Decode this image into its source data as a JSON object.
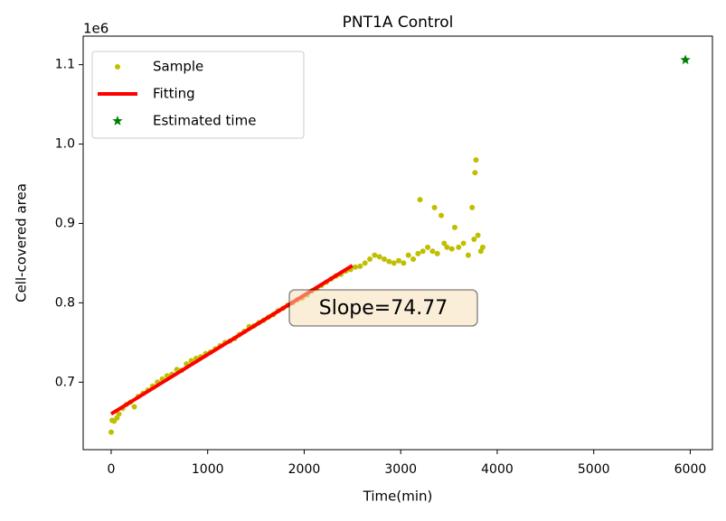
{
  "chart_data": {
    "type": "scatter",
    "title": "PNT1A Control",
    "x_label": "Time(min)",
    "y_label": "Cell-covered area",
    "y_offset_label": "1e6",
    "annotation": "Slope=74.77",
    "xlim": [
      -290,
      6230
    ],
    "ylim": [
      0.615,
      1.136
    ],
    "xticks": [
      0,
      1000,
      2000,
      3000,
      4000,
      5000,
      6000
    ],
    "yticks": [
      0.7,
      0.8,
      0.9,
      {
        "value": 1,
        "label": "1.0"
      },
      1.1
    ],
    "legend": "upper left",
    "series": [
      {
        "name": "Sample",
        "color": "#bfbf00",
        "marker": "dot",
        "x": [
          0,
          10,
          30,
          60,
          80,
          120,
          160,
          200,
          240,
          280,
          330,
          380,
          430,
          480,
          530,
          580,
          630,
          680,
          730,
          780,
          830,
          880,
          930,
          980,
          1030,
          1080,
          1130,
          1180,
          1230,
          1280,
          1330,
          1380,
          1430,
          1480,
          1530,
          1580,
          1630,
          1680,
          1730,
          1780,
          1830,
          1880,
          1930,
          1980,
          2030,
          2080,
          2130,
          2180,
          2230,
          2280,
          2330,
          2380,
          2430,
          2480,
          2530,
          2580,
          2630,
          2680,
          2730,
          2780,
          2830,
          2880,
          2930,
          2980,
          3030,
          3080,
          3130,
          3180,
          3200,
          3230,
          3280,
          3330,
          3350,
          3380,
          3420,
          3450,
          3480,
          3530,
          3560,
          3600,
          3650,
          3700,
          3740,
          3760,
          3770,
          3780,
          3800,
          3830,
          3850
        ],
        "values": [
          0.637,
          0.652,
          0.651,
          0.655,
          0.66,
          0.667,
          0.672,
          0.675,
          0.669,
          0.682,
          0.686,
          0.69,
          0.695,
          0.7,
          0.704,
          0.708,
          0.71,
          0.716,
          0.715,
          0.723,
          0.727,
          0.73,
          0.732,
          0.736,
          0.738,
          0.742,
          0.746,
          0.75,
          0.752,
          0.755,
          0.76,
          0.764,
          0.77,
          0.771,
          0.775,
          0.778,
          0.782,
          0.785,
          0.79,
          0.793,
          0.797,
          0.8,
          0.804,
          0.806,
          0.81,
          0.815,
          0.818,
          0.822,
          0.826,
          0.83,
          0.834,
          0.836,
          0.84,
          0.842,
          0.845,
          0.846,
          0.85,
          0.855,
          0.86,
          0.858,
          0.855,
          0.852,
          0.85,
          0.853,
          0.85,
          0.86,
          0.855,
          0.862,
          0.93,
          0.865,
          0.87,
          0.865,
          0.92,
          0.862,
          0.91,
          0.875,
          0.87,
          0.868,
          0.895,
          0.87,
          0.875,
          0.86,
          0.92,
          0.88,
          0.964,
          0.98,
          0.885,
          0.865,
          0.87
        ]
      },
      {
        "name": "Fitting",
        "color": "#ff0000",
        "marker": "line",
        "x": [
          0,
          2500
        ],
        "values": [
          0.66,
          0.847
        ]
      },
      {
        "name": "Estimated time",
        "color": "#008000",
        "marker": "star",
        "x": [
          5950
        ],
        "values": [
          1.106
        ]
      }
    ]
  }
}
